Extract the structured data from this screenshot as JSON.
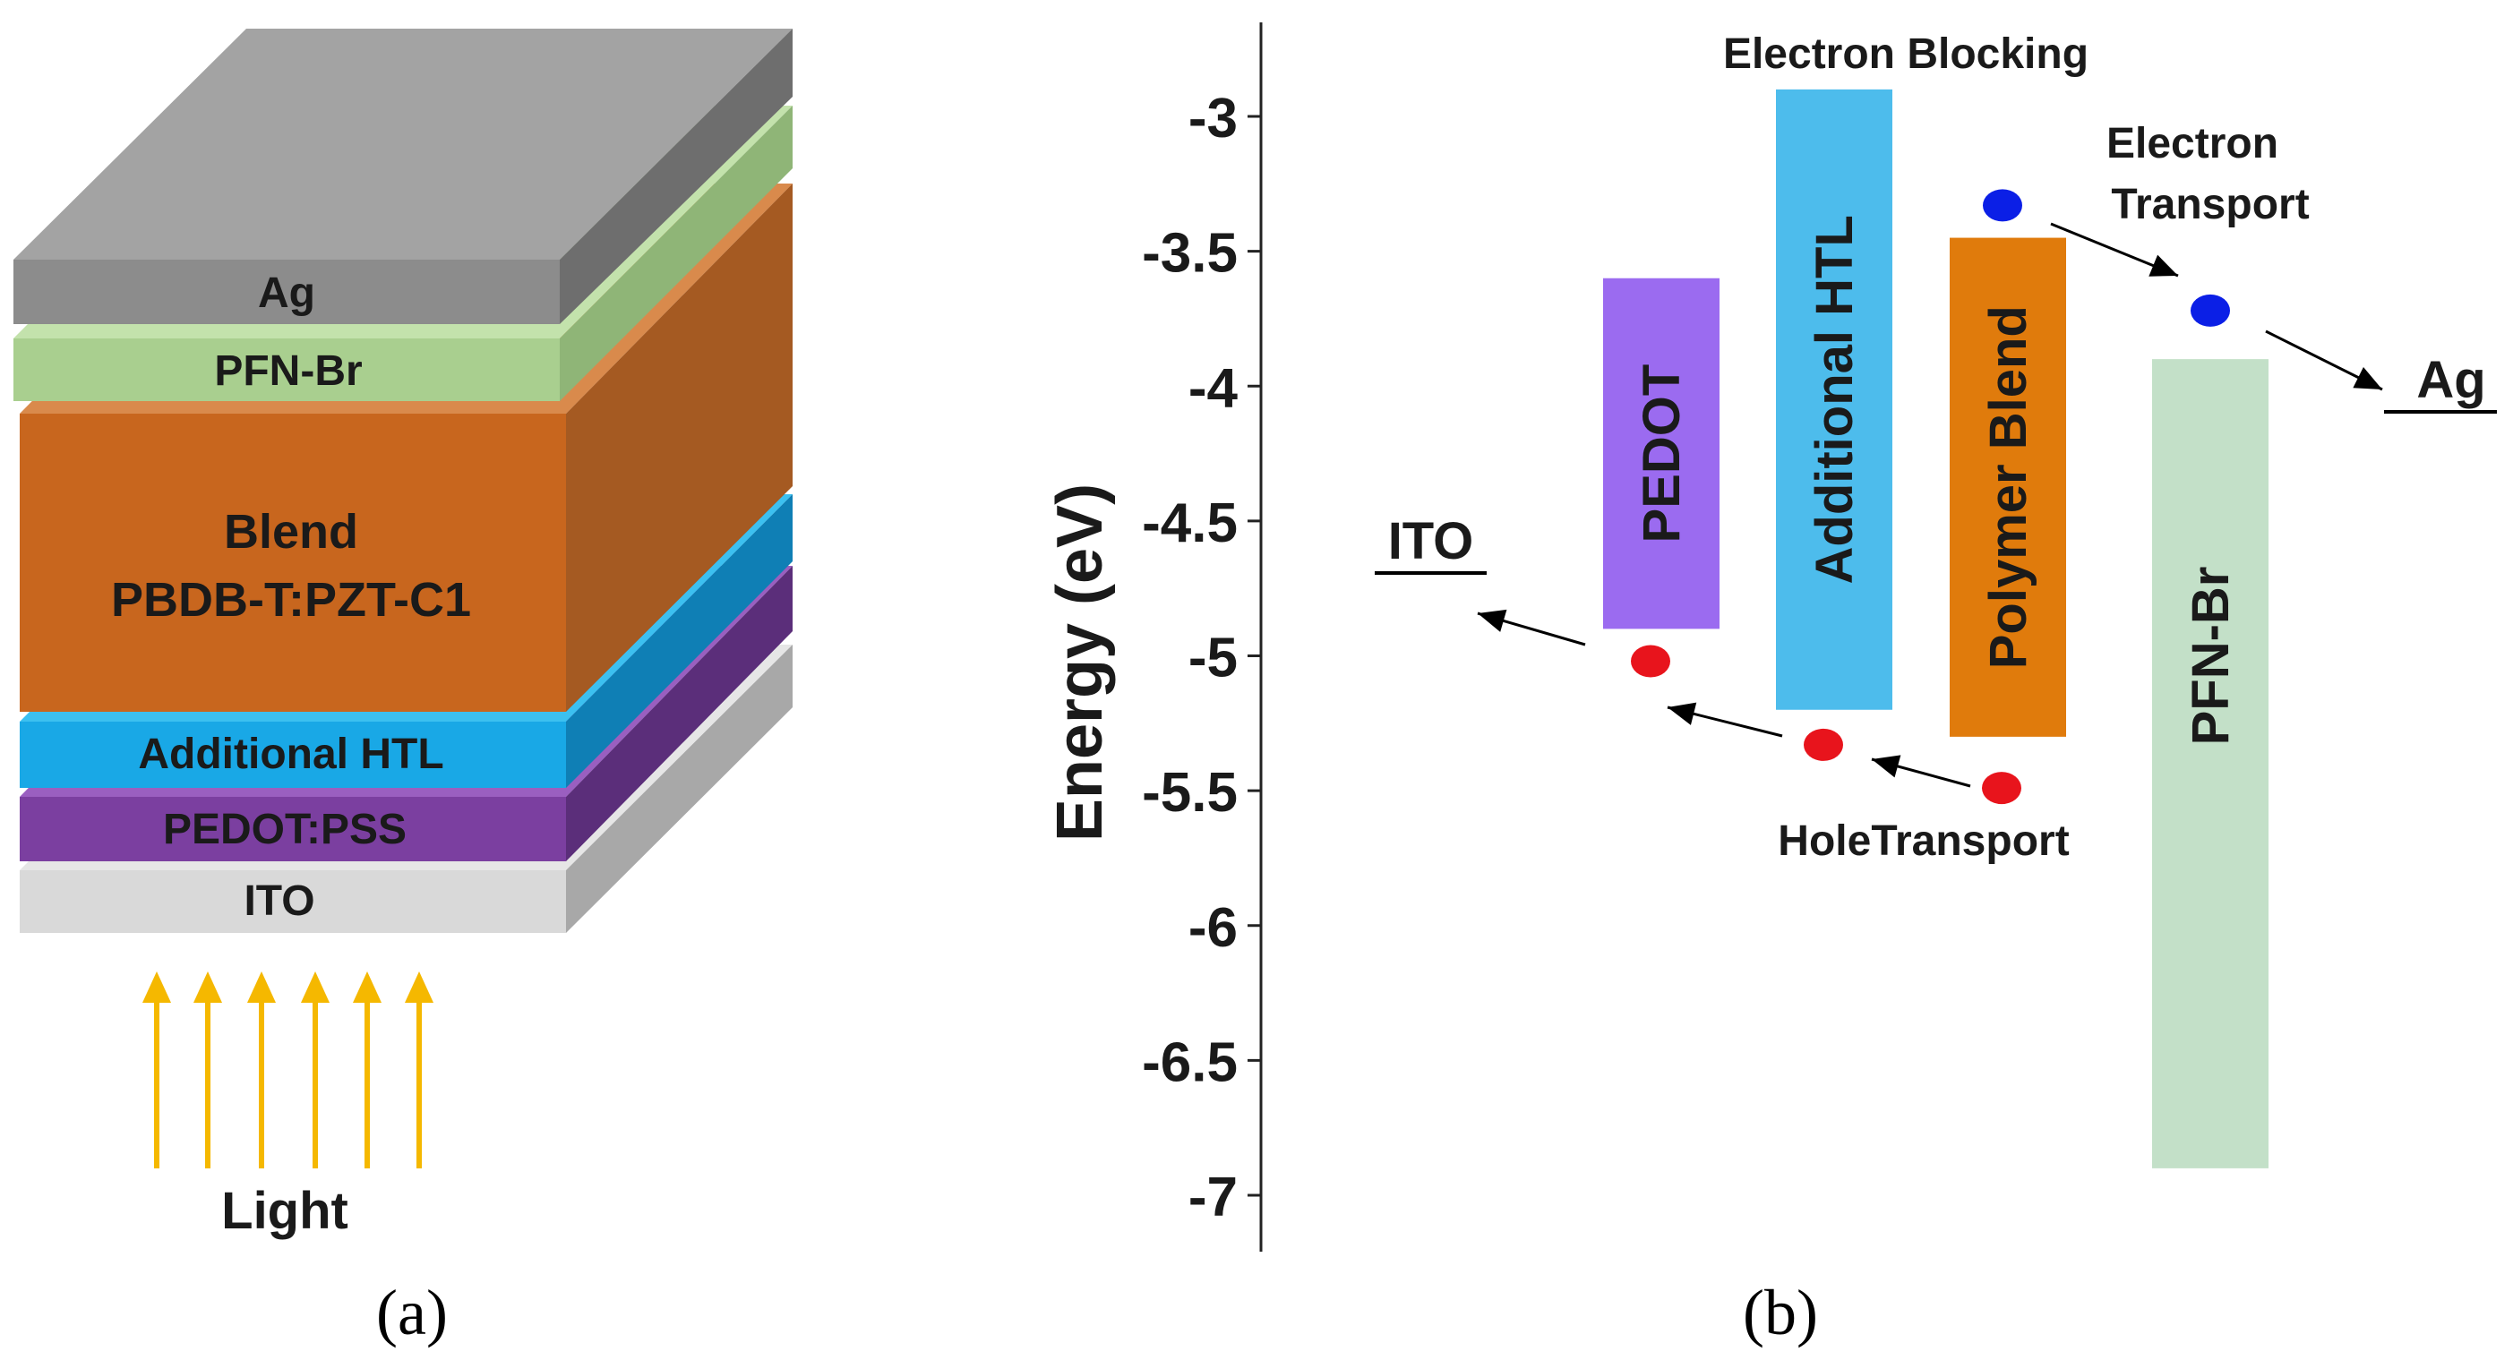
{
  "panel_a": {
    "caption": "(a)",
    "layers": [
      {
        "label": "Ag",
        "color": "#8c8c8c"
      },
      {
        "label": "PFN-Br",
        "color": "#a9cf8f"
      },
      {
        "label_line1": "Blend",
        "label_line2": "PBDB-T:PZT-C1",
        "color": "#c8661e"
      },
      {
        "label": "Additional HTL",
        "color": "#19a8e6"
      },
      {
        "label": "PEDOT:PSS",
        "color": "#7b3fa0"
      },
      {
        "label": "ITO",
        "color": "#d9d9d9"
      }
    ],
    "light_label": "Light",
    "light_color": "#f5b800",
    "light_arrow_count": 6
  },
  "panel_b": {
    "caption": "(b)",
    "ylabel": "Energy (eV)",
    "ylim": [
      -7.2,
      -2.6
    ],
    "ticks": [
      -3,
      -3.5,
      -4,
      -4.5,
      -5,
      -5.5,
      -6,
      -6.5,
      -7
    ],
    "tick_labels": [
      "-3",
      "-3.5",
      "-4",
      "-4.5",
      "-5",
      "-5.5",
      "-6",
      "-6.5",
      "-7"
    ],
    "bars": [
      {
        "label": "PEDOT",
        "top": -3.6,
        "bottom": -4.9,
        "color": "#9b6bf0"
      },
      {
        "label": "Additional HTL",
        "top": -2.9,
        "bottom": -5.2,
        "color": "#4dbcec"
      },
      {
        "label": "Polymer Blend",
        "top": -3.45,
        "bottom": -5.3,
        "color": "#e07b0c"
      },
      {
        "label": "PFN-Br",
        "top": -3.9,
        "bottom": -6.9,
        "color": "#c3e0c8"
      }
    ],
    "electrodes": [
      {
        "label": "ITO",
        "energy": -4.7
      },
      {
        "label": "Ag",
        "energy": -4.1
      }
    ],
    "electrons": [
      {
        "energy": -3.33,
        "color": "#0b1fe6"
      },
      {
        "energy": -3.72,
        "color": "#0b1fe6"
      }
    ],
    "holes": [
      {
        "energy": -5.02,
        "color": "#e8141c"
      },
      {
        "energy": -5.33,
        "color": "#e8141c"
      },
      {
        "energy": -5.49,
        "color": "#e8141c"
      }
    ],
    "annotations": {
      "electron_blocking": "Electron Blocking",
      "electron_transport_1": "Electron",
      "electron_transport_2": "Transport",
      "hole_transport": "HoleTransport"
    }
  }
}
